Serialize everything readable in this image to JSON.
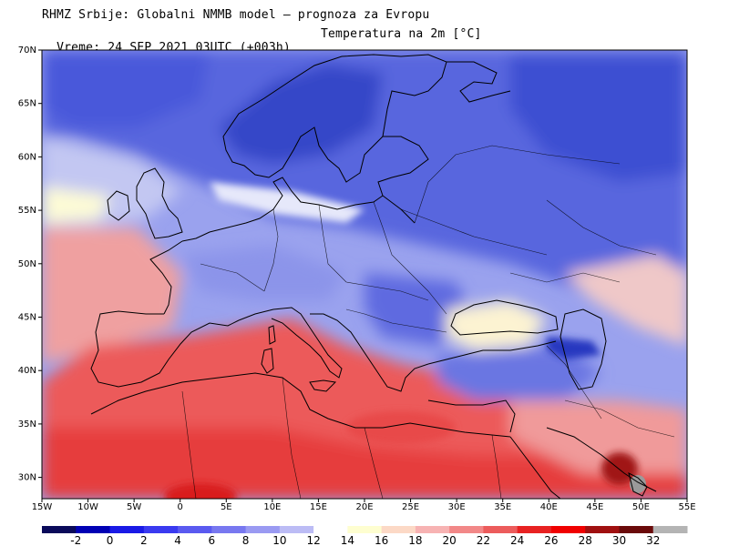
{
  "header": {
    "line1": "RHMZ Srbije: Globalni NMMB model — prognoza za Evropu",
    "line2_time": "Vreme: 24 SEP 2021 03UTC (+003h)",
    "line2_var": "Temperatura na 2m [°C]"
  },
  "map": {
    "lat_labels": [
      "70N",
      "65N",
      "60N",
      "55N",
      "50N",
      "45N",
      "40N",
      "35N",
      "30N"
    ],
    "lon_labels": [
      "15W",
      "10W",
      "5W",
      "0",
      "5E",
      "10E",
      "15E",
      "20E",
      "25E",
      "30E",
      "35E",
      "40E",
      "45E",
      "50E",
      "55E"
    ]
  },
  "colors": {
    "land_frame": "#000000",
    "deep_blue": "#2d3fc8",
    "mid_blue": "#6874e0",
    "light_blue": "#b8beef",
    "pale": "#fefed4",
    "light_red": "#f0a0a0",
    "red": "#ec5353"
  },
  "legend": {
    "labels": [
      "-2",
      "0",
      "2",
      "4",
      "6",
      "8",
      "10",
      "12",
      "14",
      "16",
      "18",
      "20",
      "22",
      "24",
      "26",
      "28",
      "30",
      "32"
    ],
    "colors": [
      "#0a0a5a",
      "#0000b4",
      "#1a1ae6",
      "#3a3af0",
      "#5a5af0",
      "#7878f0",
      "#9a9af2",
      "#bcbcf5",
      "#ffffff",
      "#fefed0",
      "#fcd9c6",
      "#f7b3b3",
      "#f28888",
      "#ec5c5c",
      "#e82222",
      "#f00000",
      "#a01010",
      "#6a0a0a",
      "#b4b4b4"
    ]
  }
}
